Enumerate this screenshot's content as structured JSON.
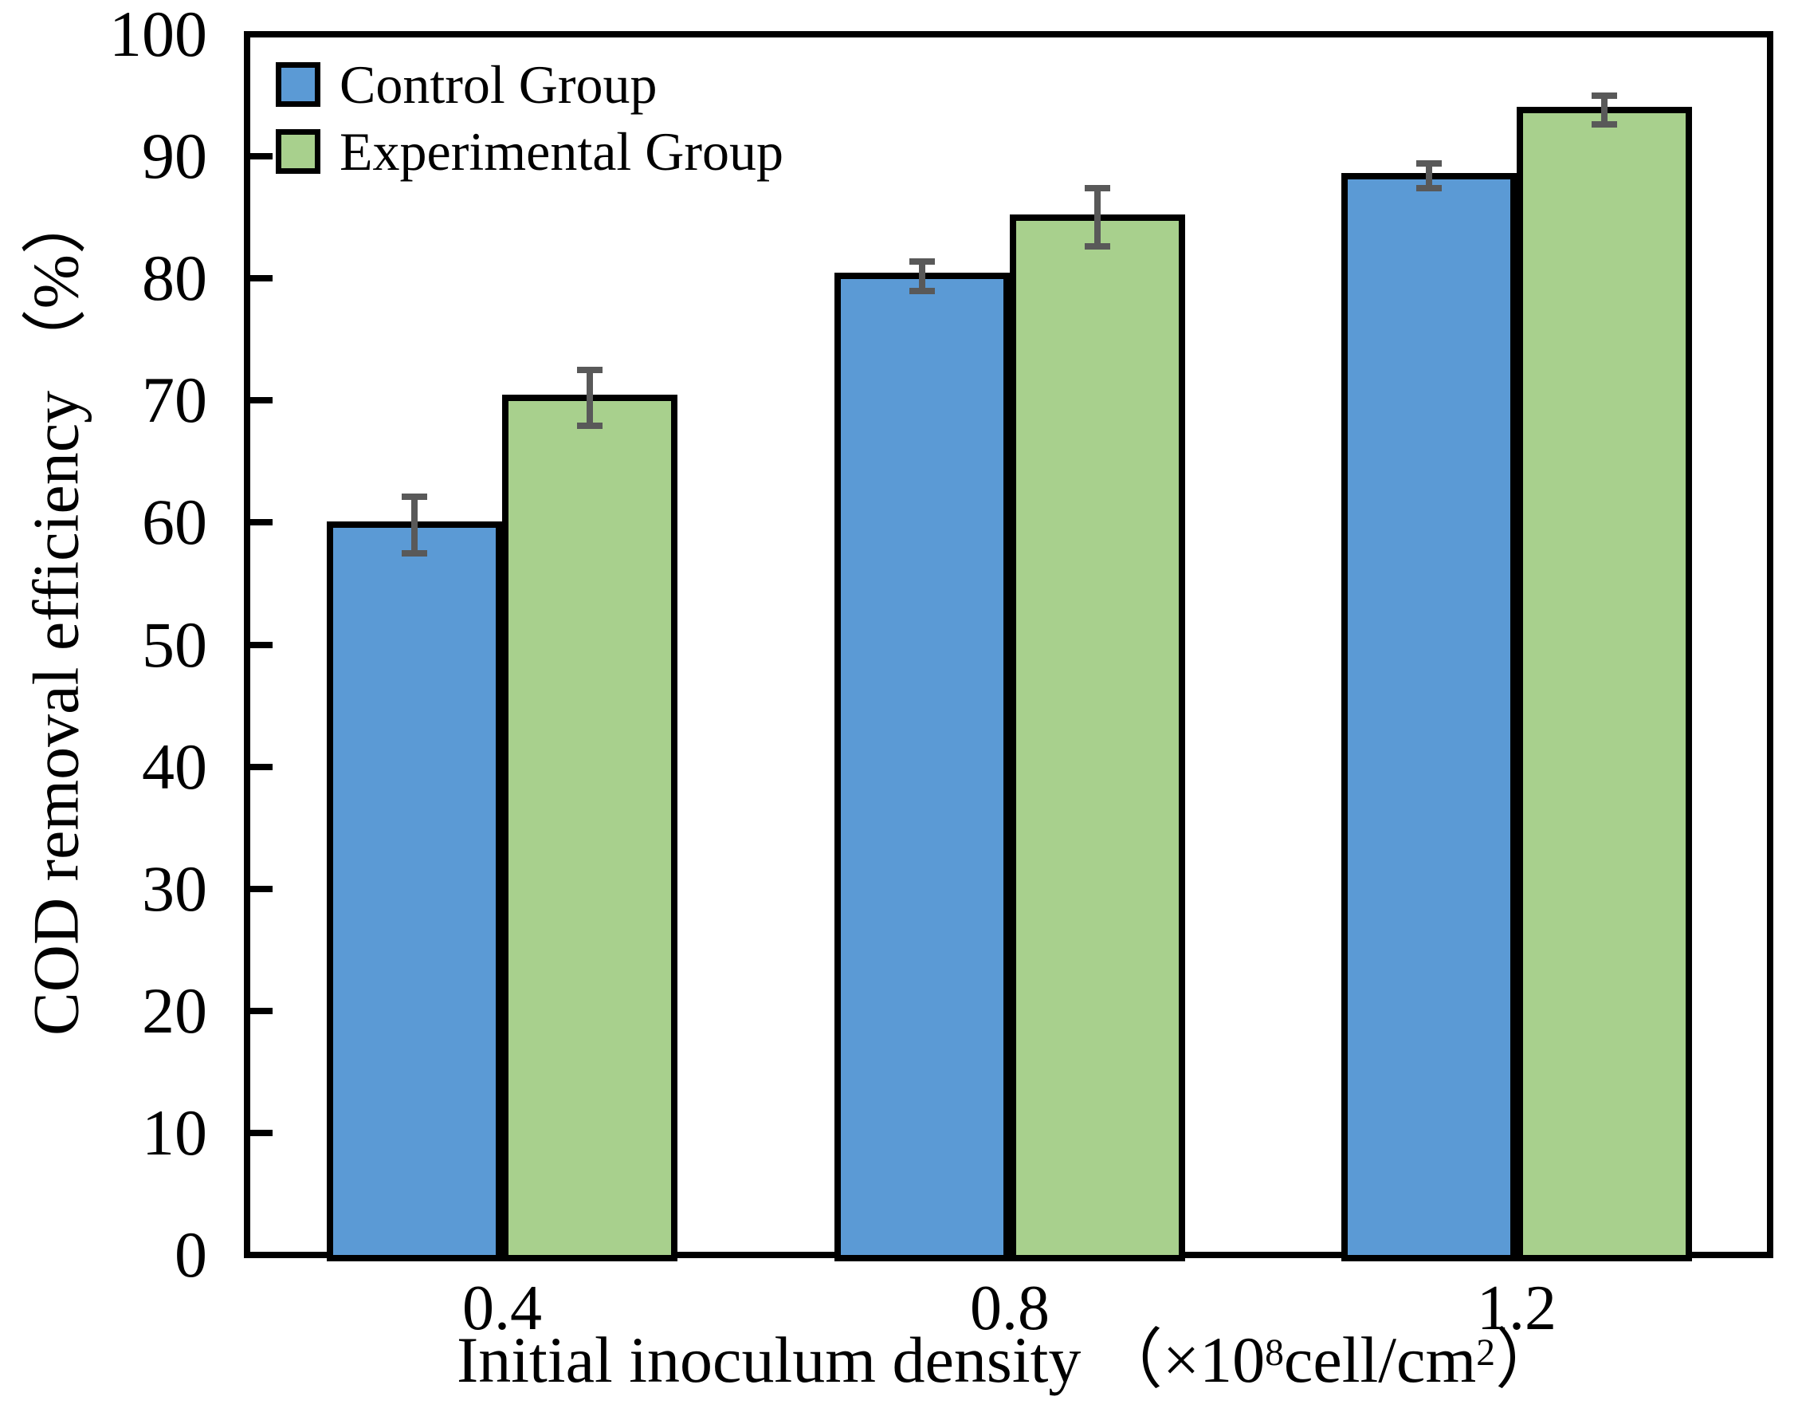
{
  "chart_data": {
    "type": "bar",
    "title": "",
    "ylabel": "COD removal efficiency （%）",
    "xlabel": "Initial inoculum density （×10⁸cell/cm²）",
    "xlabel_parts": {
      "prefix": "Initial inoculum density （×10",
      "sup_exponent": "8",
      "mid": "cell/cm",
      "sup_square": "2",
      "suffix": "）"
    },
    "categories": [
      "0.4",
      "0.8",
      "1.2"
    ],
    "series": [
      {
        "name": "Control Group",
        "color": "#5B9AD5",
        "values": [
          59.8,
          80.2,
          88.4
        ],
        "errors": [
          2.3,
          1.2,
          1.0
        ]
      },
      {
        "name": "Experimental Group",
        "color": "#A8D08D",
        "values": [
          70.2,
          85.0,
          93.8
        ],
        "errors": [
          2.3,
          2.4,
          1.2
        ]
      }
    ],
    "ylim": [
      0,
      100
    ],
    "yticks": [
      0,
      10,
      20,
      30,
      40,
      50,
      60,
      70,
      80,
      90,
      100
    ],
    "grid": false,
    "legend_position": "top-left",
    "error_bar_color": "#595959",
    "bar_border_color": "#000000",
    "frame_color": "#000000"
  }
}
